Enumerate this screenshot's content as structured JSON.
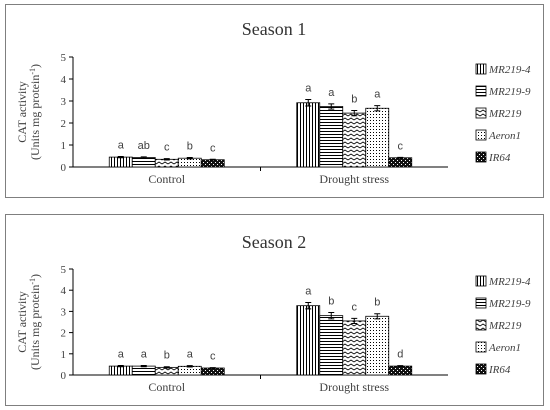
{
  "colors": {
    "frame": "#7f7f7f",
    "axis": "#000000",
    "bar_outline": "#000000",
    "bar_fill": "#ffffff",
    "error_bar": "#000000",
    "text": "#404040"
  },
  "chart_data": [
    {
      "type": "bar",
      "title": "Season 1",
      "ylabel_line1": "CAT activity",
      "ylabel_line2": "(Units mg protein",
      "ylabel_sup": "-1",
      "ylabel_close": ")",
      "xlabel": "",
      "ylim": [
        0,
        5
      ],
      "yticks": [
        "0",
        "1",
        "2",
        "3",
        "4",
        "5"
      ],
      "categories": [
        "Control",
        "Drought stress"
      ],
      "grid": false,
      "legend_position": "right",
      "series": [
        {
          "name": "MR219-4",
          "pattern": "vertical-lines",
          "values": [
            0.45,
            2.92
          ],
          "errors": [
            0.03,
            0.15
          ],
          "letters": [
            "a",
            "a"
          ]
        },
        {
          "name": "MR219-9",
          "pattern": "horizontal-lines",
          "values": [
            0.43,
            2.75
          ],
          "errors": [
            0.03,
            0.12
          ],
          "letters": [
            "ab",
            "a"
          ]
        },
        {
          "name": "MR219",
          "pattern": "zigzag",
          "values": [
            0.35,
            2.45
          ],
          "errors": [
            0.03,
            0.12
          ],
          "letters": [
            "c",
            "b"
          ]
        },
        {
          "name": "Aeron1",
          "pattern": "dots",
          "values": [
            0.4,
            2.67
          ],
          "errors": [
            0.03,
            0.12
          ],
          "letters": [
            "b",
            "a"
          ]
        },
        {
          "name": "IR64",
          "pattern": "dark-checker",
          "values": [
            0.33,
            0.42
          ],
          "errors": [
            0.02,
            0.02
          ],
          "letters": [
            "c",
            "c"
          ]
        }
      ]
    },
    {
      "type": "bar",
      "title": "Season 2",
      "ylabel_line1": "CAT activity",
      "ylabel_line2": "(Units mg protein",
      "ylabel_sup": "-1",
      "ylabel_close": ")",
      "xlabel": "",
      "ylim": [
        0,
        5
      ],
      "yticks": [
        "0",
        "1",
        "2",
        "3",
        "4",
        "5"
      ],
      "categories": [
        "Control",
        "Drought stress"
      ],
      "grid": false,
      "legend_position": "right",
      "series": [
        {
          "name": "MR219-4",
          "pattern": "vertical-lines",
          "values": [
            0.42,
            3.27
          ],
          "errors": [
            0.03,
            0.15
          ],
          "letters": [
            "a",
            "a"
          ]
        },
        {
          "name": "MR219-9",
          "pattern": "horizontal-lines",
          "values": [
            0.42,
            2.8
          ],
          "errors": [
            0.03,
            0.15
          ],
          "letters": [
            "a",
            "b"
          ]
        },
        {
          "name": "MR219",
          "pattern": "zigzag",
          "values": [
            0.36,
            2.55
          ],
          "errors": [
            0.03,
            0.12
          ],
          "letters": [
            "b",
            "c"
          ]
        },
        {
          "name": "Aeron1",
          "pattern": "dots",
          "values": [
            0.41,
            2.77
          ],
          "errors": [
            0.03,
            0.12
          ],
          "letters": [
            "a",
            "b"
          ]
        },
        {
          "name": "IR64",
          "pattern": "dark-checker",
          "values": [
            0.33,
            0.42
          ],
          "errors": [
            0.02,
            0.02
          ],
          "letters": [
            "c",
            "d"
          ]
        }
      ]
    }
  ]
}
